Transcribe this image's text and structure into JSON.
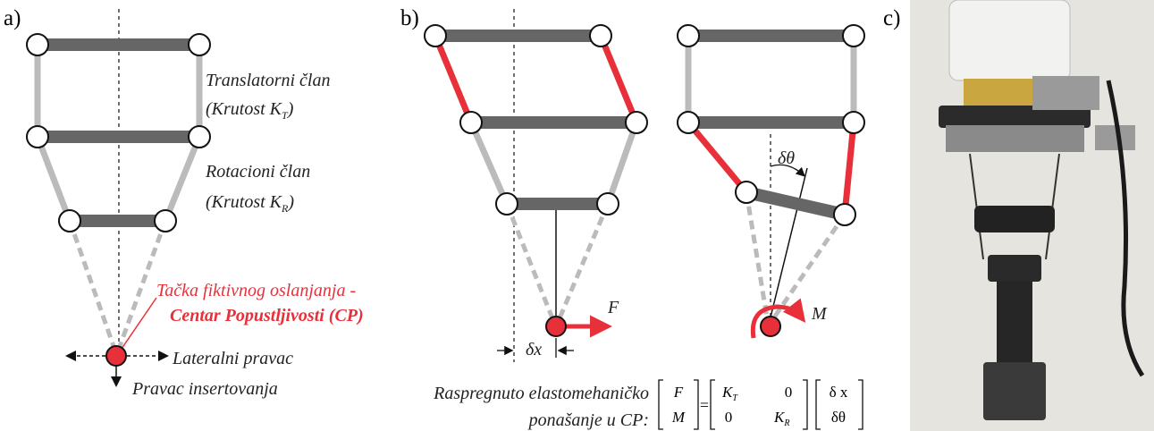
{
  "panel_a": {
    "label": "a)",
    "translational_name": "Translatorni član",
    "translational_stiffness": {
      "text": "(Krutost K",
      "subscript": "T",
      "close": ")"
    },
    "rotational_name": "Rotacioni član",
    "rotational_stiffness": {
      "text": "(Krutost K",
      "subscript": "R",
      "close": ")"
    },
    "compliance_center": {
      "line1": "Tačka fiktivnog oslanjanja -",
      "line2": "Centar Popustljivosti (CP)"
    },
    "lateral": "Lateralni pravac",
    "insertion": "Pravac insertovanja"
  },
  "panel_b": {
    "label": "b)",
    "force": "F",
    "moment": "M",
    "displacement": "δx",
    "rotation": "δθ",
    "equation": {
      "caption_line1": "Raspregnuto elastomehaničko",
      "caption_line2": "ponašanje u CP:",
      "lhs": [
        "F",
        "M"
      ],
      "equals": "=",
      "matrix": [
        [
          {
            "text": "K",
            "subscript": "T"
          },
          "0"
        ],
        [
          "0",
          {
            "text": "K",
            "subscript": "R"
          }
        ]
      ],
      "rhs": [
        "δ x",
        "δθ"
      ]
    }
  },
  "panel_c": {
    "label": "c)"
  }
}
